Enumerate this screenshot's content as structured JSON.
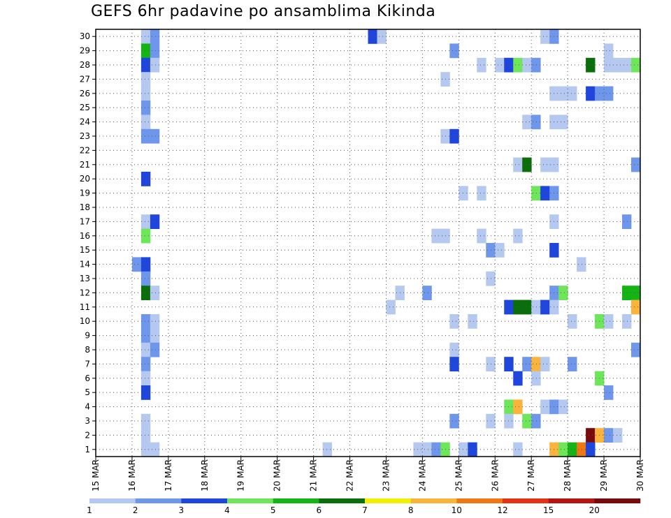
{
  "chart_data": {
    "type": "heatmap",
    "title": "GEFS 6hr padavine po ansamblima Kikinda",
    "xlabel": "",
    "ylabel": "",
    "x_tick_labels": [
      "15 MAR",
      "16 MAR",
      "17 MAR",
      "18 MAR",
      "19 MAR",
      "20 MAR",
      "21 MAR",
      "22 MAR",
      "23 MAR",
      "24 MAR",
      "25 MAR",
      "26 MAR",
      "27 MAR",
      "28 MAR",
      "29 MAR",
      "30 MAR"
    ],
    "y_tick_labels": [
      "1",
      "2",
      "3",
      "4",
      "5",
      "6",
      "7",
      "8",
      "9",
      "10",
      "11",
      "12",
      "13",
      "14",
      "15",
      "16",
      "17",
      "18",
      "19",
      "20",
      "21",
      "22",
      "23",
      "24",
      "25",
      "26",
      "27",
      "28",
      "29",
      "30"
    ],
    "x_unit": "6-hour step (4 per day) starting 15 MAR 00z",
    "ylim": [
      0,
      30
    ],
    "levels": [
      "1",
      "2",
      "3",
      "4",
      "5",
      "6",
      "7",
      "8",
      "10",
      "12",
      "15",
      "20"
    ],
    "level_colors": [
      "#b4c8f0",
      "#6e96eb",
      "#1e46dc",
      "#6ee65a",
      "#14b414",
      "#0a6e0a",
      "#f0f000",
      "#fab43c",
      "#f07814",
      "#e63214",
      "#b41414",
      "#780a0a"
    ],
    "cells": [
      [
        5,
        30,
        1
      ],
      [
        6,
        30,
        2
      ],
      [
        30,
        30,
        3
      ],
      [
        31,
        30,
        1
      ],
      [
        49,
        30,
        1
      ],
      [
        50,
        30,
        2
      ],
      [
        5,
        29,
        5
      ],
      [
        6,
        29,
        2
      ],
      [
        39,
        29,
        2
      ],
      [
        56,
        29,
        1
      ],
      [
        5,
        28,
        3
      ],
      [
        6,
        28,
        1
      ],
      [
        42,
        28,
        1
      ],
      [
        44,
        28,
        1
      ],
      [
        45,
        28,
        3
      ],
      [
        46,
        28,
        4
      ],
      [
        47,
        28,
        1
      ],
      [
        48,
        28,
        2
      ],
      [
        54,
        28,
        6
      ],
      [
        56,
        28,
        1
      ],
      [
        57,
        28,
        1
      ],
      [
        58,
        28,
        1
      ],
      [
        59,
        28,
        4
      ],
      [
        5,
        27,
        1
      ],
      [
        38,
        27,
        1
      ],
      [
        5,
        26,
        1
      ],
      [
        50,
        26,
        1
      ],
      [
        51,
        26,
        1
      ],
      [
        52,
        26,
        1
      ],
      [
        54,
        26,
        3
      ],
      [
        55,
        26,
        2
      ],
      [
        56,
        26,
        2
      ],
      [
        5,
        25,
        2
      ],
      [
        5,
        24,
        1
      ],
      [
        47,
        24,
        1
      ],
      [
        48,
        24,
        2
      ],
      [
        50,
        24,
        1
      ],
      [
        51,
        24,
        1
      ],
      [
        5,
        23,
        2
      ],
      [
        6,
        23,
        2
      ],
      [
        38,
        23,
        1
      ],
      [
        39,
        23,
        3
      ],
      [
        46,
        21,
        1
      ],
      [
        47,
        21,
        6
      ],
      [
        49,
        21,
        1
      ],
      [
        50,
        21,
        1
      ],
      [
        59,
        21,
        2
      ],
      [
        5,
        20,
        3
      ],
      [
        40,
        19,
        1
      ],
      [
        42,
        19,
        1
      ],
      [
        48,
        19,
        4
      ],
      [
        49,
        19,
        3
      ],
      [
        50,
        19,
        2
      ],
      [
        5,
        17,
        1
      ],
      [
        6,
        17,
        3
      ],
      [
        50,
        17,
        1
      ],
      [
        58,
        17,
        2
      ],
      [
        5,
        16,
        4
      ],
      [
        37,
        16,
        1
      ],
      [
        38,
        16,
        1
      ],
      [
        42,
        16,
        1
      ],
      [
        46,
        16,
        1
      ],
      [
        43,
        15,
        2
      ],
      [
        44,
        15,
        1
      ],
      [
        50,
        15,
        3
      ],
      [
        4,
        14,
        2
      ],
      [
        5,
        14,
        3
      ],
      [
        53,
        14,
        1
      ],
      [
        5,
        13,
        2
      ],
      [
        43,
        13,
        1
      ],
      [
        5,
        12,
        6
      ],
      [
        6,
        12,
        1
      ],
      [
        33,
        12,
        1
      ],
      [
        36,
        12,
        2
      ],
      [
        50,
        12,
        2
      ],
      [
        51,
        12,
        4
      ],
      [
        58,
        12,
        5
      ],
      [
        59,
        12,
        5
      ],
      [
        32,
        11,
        1
      ],
      [
        45,
        11,
        3
      ],
      [
        46,
        11,
        6
      ],
      [
        47,
        11,
        6
      ],
      [
        48,
        11,
        1
      ],
      [
        49,
        11,
        3
      ],
      [
        50,
        11,
        1
      ],
      [
        59,
        11,
        8
      ],
      [
        5,
        10,
        2
      ],
      [
        6,
        10,
        1
      ],
      [
        39,
        10,
        1
      ],
      [
        41,
        10,
        1
      ],
      [
        52,
        10,
        1
      ],
      [
        55,
        10,
        4
      ],
      [
        56,
        10,
        1
      ],
      [
        58,
        10,
        1
      ],
      [
        5,
        9,
        2
      ],
      [
        6,
        9,
        1
      ],
      [
        5,
        8,
        1
      ],
      [
        6,
        8,
        2
      ],
      [
        39,
        8,
        1
      ],
      [
        59,
        8,
        2
      ],
      [
        5,
        7,
        2
      ],
      [
        39,
        7,
        3
      ],
      [
        43,
        7,
        1
      ],
      [
        45,
        7,
        3
      ],
      [
        47,
        7,
        2
      ],
      [
        48,
        7,
        8
      ],
      [
        49,
        7,
        1
      ],
      [
        52,
        7,
        2
      ],
      [
        5,
        6,
        1
      ],
      [
        46,
        6,
        3
      ],
      [
        48,
        6,
        1
      ],
      [
        55,
        6,
        4
      ],
      [
        5,
        5,
        3
      ],
      [
        56,
        5,
        2
      ],
      [
        45,
        4,
        4
      ],
      [
        46,
        4,
        8
      ],
      [
        49,
        4,
        1
      ],
      [
        50,
        4,
        2
      ],
      [
        51,
        4,
        1
      ],
      [
        5,
        3,
        1
      ],
      [
        39,
        3,
        2
      ],
      [
        43,
        3,
        1
      ],
      [
        45,
        3,
        1
      ],
      [
        47,
        3,
        4
      ],
      [
        48,
        3,
        2
      ],
      [
        5,
        2,
        1
      ],
      [
        54,
        2,
        12
      ],
      [
        55,
        2,
        8
      ],
      [
        56,
        2,
        2
      ],
      [
        57,
        2,
        1
      ],
      [
        5,
        1,
        1
      ],
      [
        6,
        1,
        1
      ],
      [
        25,
        1,
        1
      ],
      [
        35,
        1,
        1
      ],
      [
        36,
        1,
        1
      ],
      [
        37,
        1,
        2
      ],
      [
        38,
        1,
        4
      ],
      [
        40,
        1,
        1
      ],
      [
        41,
        1,
        3
      ],
      [
        46,
        1,
        1
      ],
      [
        50,
        1,
        8
      ],
      [
        51,
        1,
        4
      ],
      [
        52,
        1,
        5
      ],
      [
        53,
        1,
        9
      ],
      [
        54,
        1,
        3
      ]
    ]
  }
}
